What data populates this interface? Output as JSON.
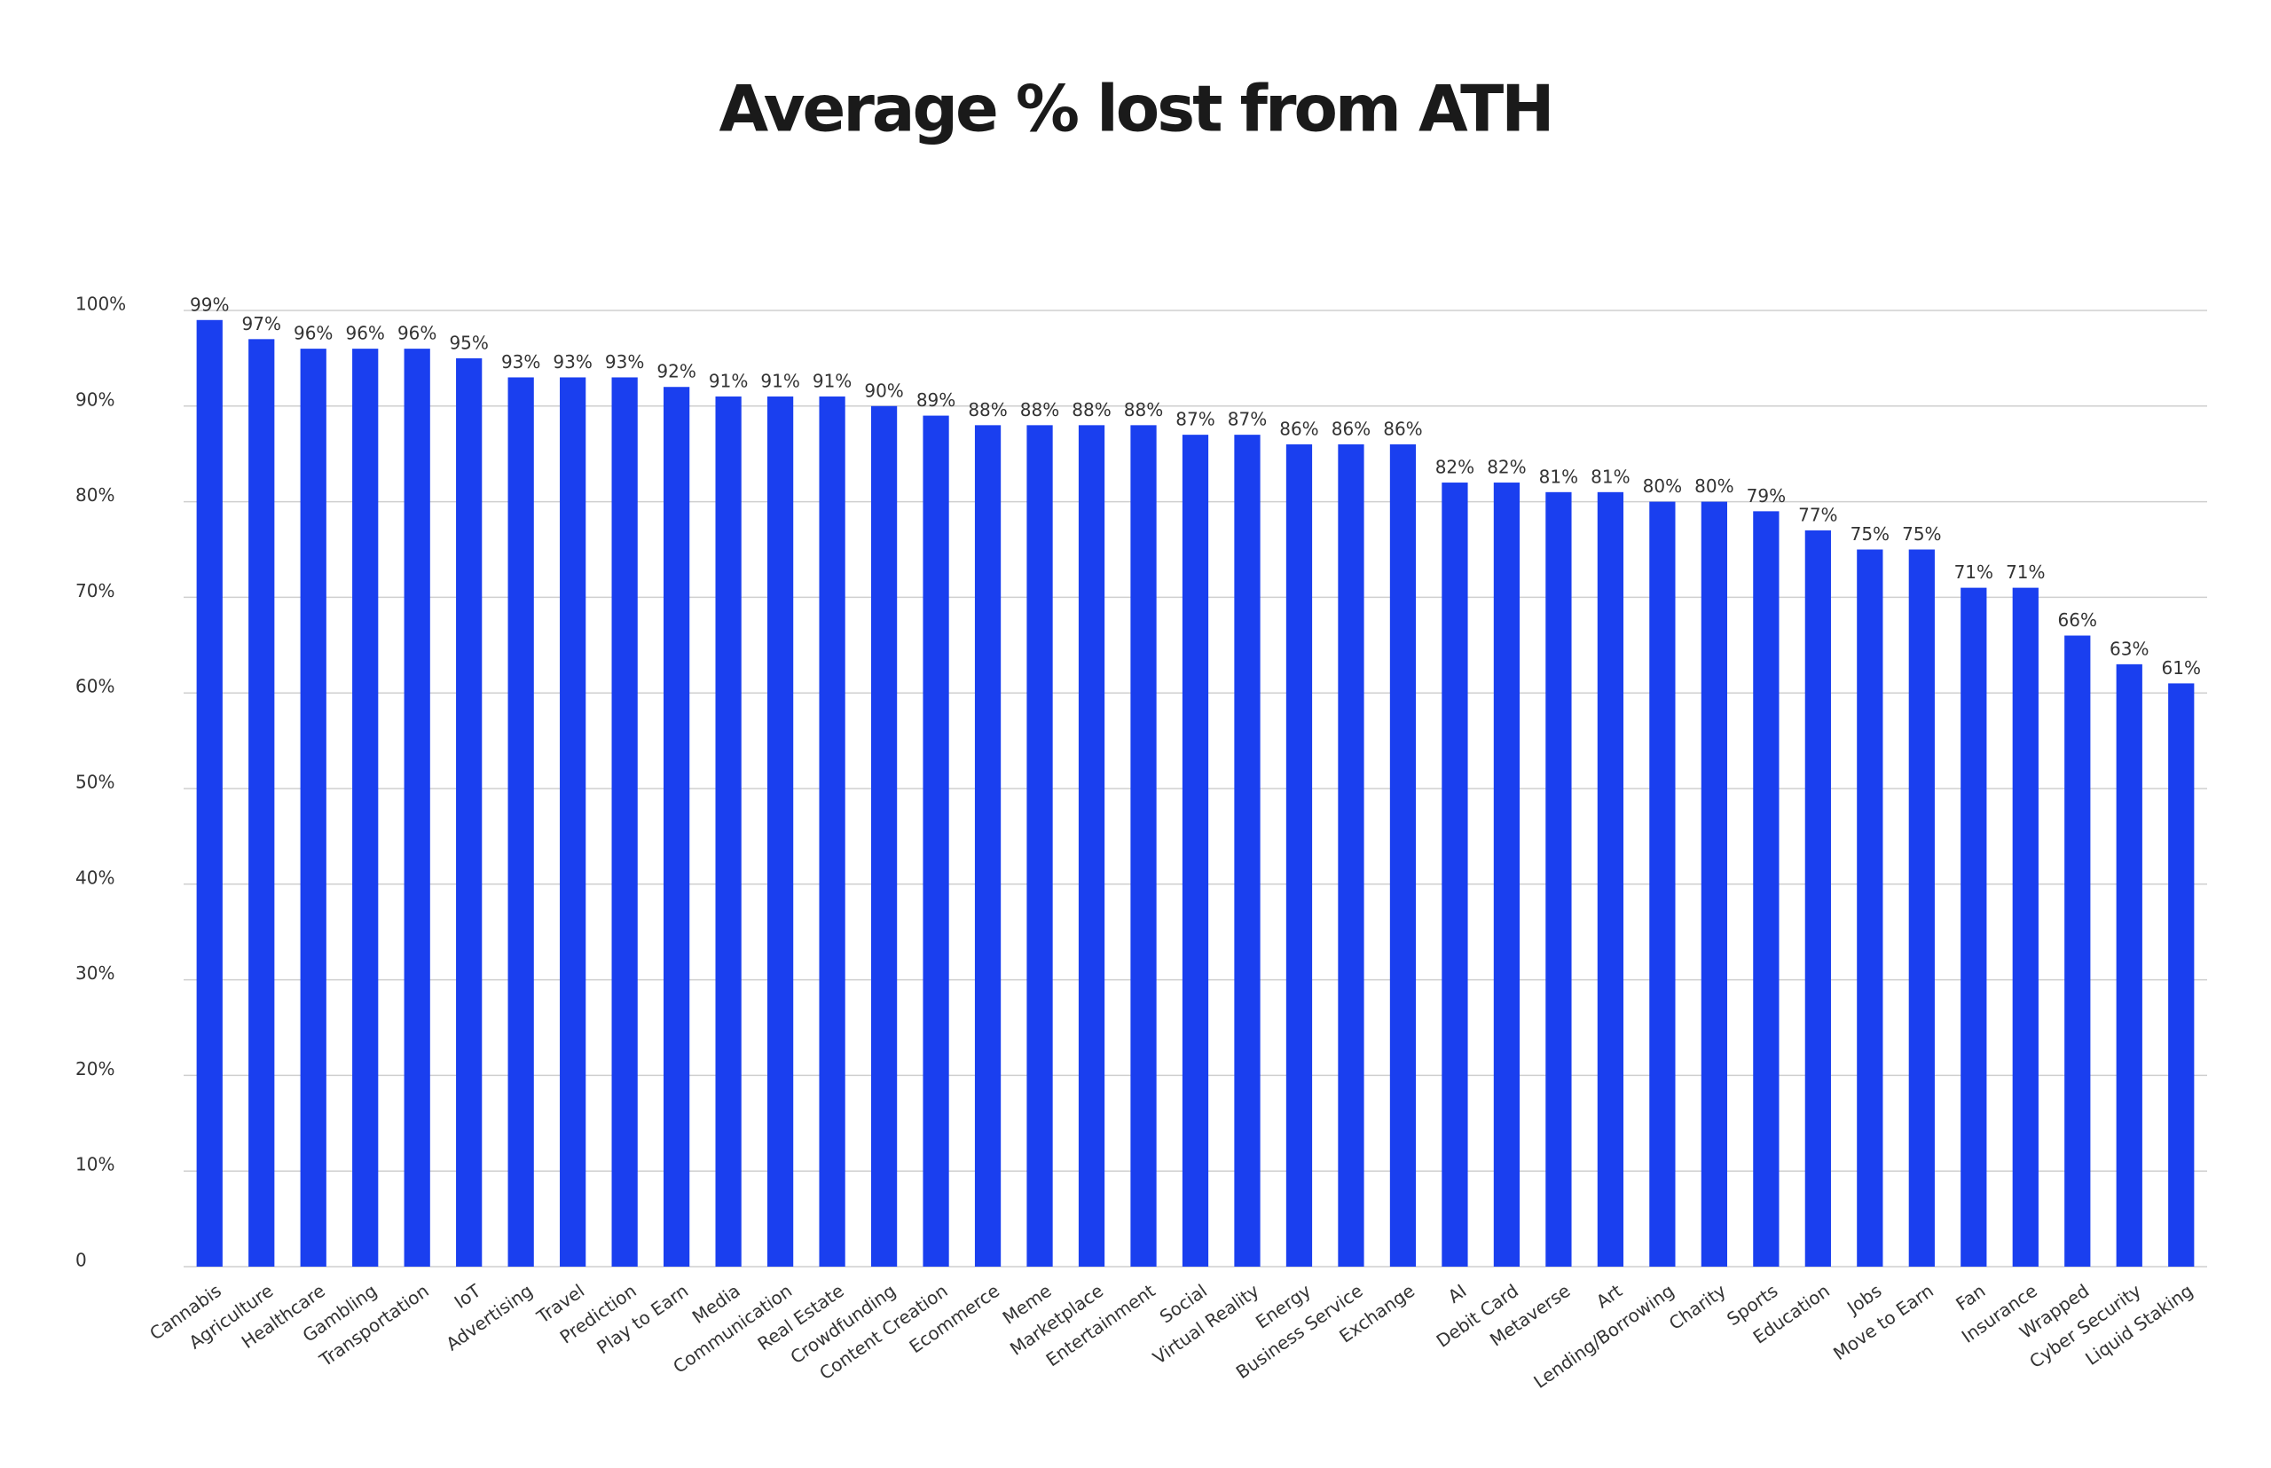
{
  "chart_data": {
    "type": "bar",
    "title": "Average % lost from ATH",
    "categories": [
      "Cannabis",
      "Agriculture",
      "Healthcare",
      "Gambling",
      "Transportation",
      "IoT",
      "Advertising",
      "Travel",
      "Prediction",
      "Play to Earn",
      "Media",
      "Communication",
      "Real Estate",
      "Crowdfunding",
      "Content Creation",
      "Ecommerce",
      "Meme",
      "Marketplace",
      "Entertainment",
      "Social",
      "Virtual Reality",
      "Energy",
      "Business Service",
      "Exchange",
      "AI",
      "Debit Card",
      "Metaverse",
      "Art",
      "Lending/Borrowing",
      "Charity",
      "Sports",
      "Education",
      "Jobs",
      "Move to Earn",
      "Fan",
      "Insurance",
      "Wrapped",
      "Cyber Security",
      "Liquid Staking"
    ],
    "values": [
      99,
      97,
      96,
      96,
      96,
      95,
      93,
      93,
      93,
      92,
      91,
      91,
      91,
      90,
      89,
      88,
      88,
      88,
      88,
      87,
      87,
      86,
      86,
      86,
      82,
      82,
      81,
      81,
      80,
      80,
      79,
      77,
      75,
      75,
      71,
      71,
      66,
      63,
      61
    ],
    "value_labels": [
      "99%",
      "97%",
      "96%",
      "96%",
      "96%",
      "95%",
      "93%",
      "93%",
      "93%",
      "92%",
      "91%",
      "91%",
      "91%",
      "90%",
      "89%",
      "88%",
      "88%",
      "88%",
      "88%",
      "87%",
      "87%",
      "86%",
      "86%",
      "86%",
      "82%",
      "82%",
      "81%",
      "81%",
      "80%",
      "80%",
      "79%",
      "77%",
      "75%",
      "75%",
      "71%",
      "71%",
      "66%",
      "63%",
      "61%"
    ],
    "color": "#1a3fef",
    "ylim": [
      0,
      100
    ],
    "yticks": [
      0,
      {
        "value": 10,
        "label": "10%"
      },
      {
        "value": 20,
        "label": "20%"
      },
      {
        "value": 30,
        "label": "30%"
      },
      {
        "value": 40,
        "label": "40%"
      },
      {
        "value": 50,
        "label": "50%"
      },
      {
        "value": 60,
        "label": "60%"
      },
      {
        "value": 70,
        "label": "70%"
      },
      {
        "value": 80,
        "label": "80%"
      },
      {
        "value": 90,
        "label": "90%"
      },
      {
        "value": 100,
        "label": "100%"
      }
    ],
    "grid": true
  }
}
